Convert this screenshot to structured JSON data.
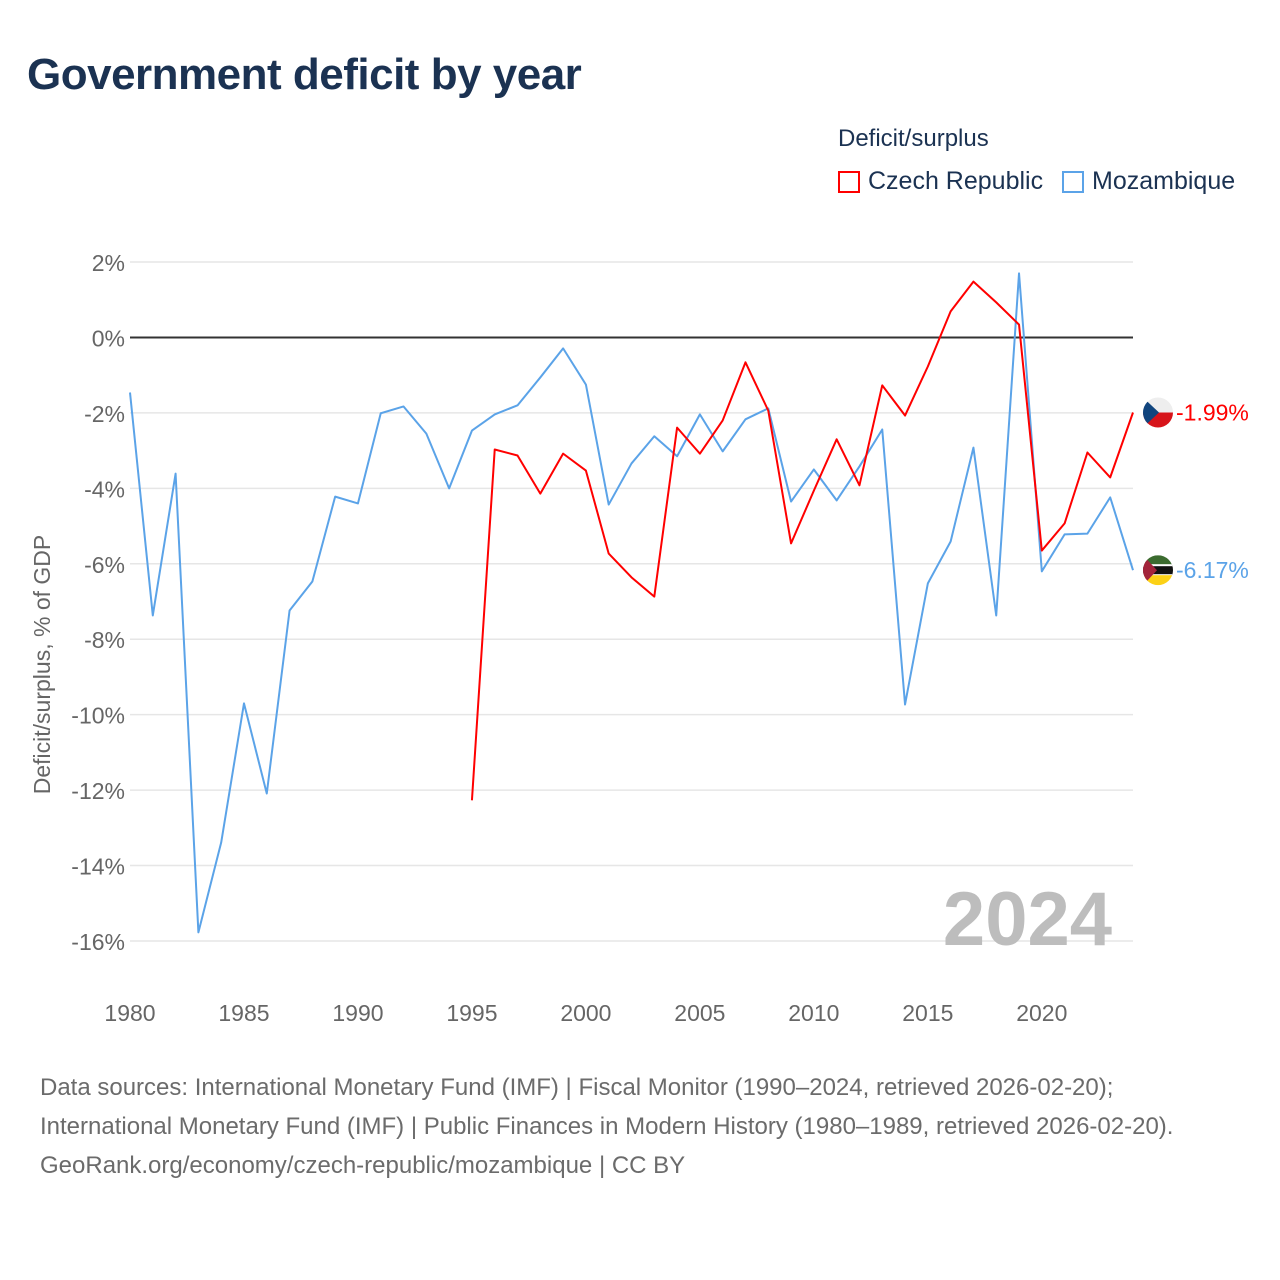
{
  "chart_data": {
    "type": "line",
    "title": "Government deficit by year",
    "xlabel": "",
    "ylabel": "Deficit/surplus, % of GDP",
    "xlim": [
      1980,
      2024
    ],
    "ylim": [
      -16,
      2
    ],
    "grid": true,
    "x_ticks": [
      "1980",
      "1985",
      "1990",
      "1995",
      "2000",
      "2005",
      "2010",
      "2015",
      "2020"
    ],
    "y_ticks": [
      "2%",
      "0%",
      "-2%",
      "-4%",
      "-6%",
      "-8%",
      "-10%",
      "-12%",
      "-14%",
      "-16%"
    ],
    "legend_title": "Deficit/surplus",
    "legend_position": "top-right",
    "year_watermark": "2024",
    "series": [
      {
        "name": "Czech Republic",
        "color": "#ff0000",
        "end_label": "-1.99%",
        "x": [
          1995,
          1996,
          1997,
          1998,
          1999,
          2000,
          2001,
          2002,
          2003,
          2004,
          2005,
          2006,
          2007,
          2008,
          2009,
          2010,
          2011,
          2012,
          2013,
          2014,
          2015,
          2016,
          2017,
          2018,
          2019,
          2020,
          2021,
          2022,
          2023,
          2024
        ],
        "values": [
          -12.27,
          -2.97,
          -3.13,
          -4.14,
          -3.08,
          -3.53,
          -5.73,
          -6.36,
          -6.87,
          -2.39,
          -3.08,
          -2.2,
          -0.66,
          -1.94,
          -5.46,
          -4.06,
          -2.7,
          -3.92,
          -1.27,
          -2.07,
          -0.77,
          0.69,
          1.48,
          0.93,
          0.34,
          -5.65,
          -4.93,
          -3.05,
          -3.71,
          -1.99
        ]
      },
      {
        "name": "Mozambique",
        "color": "#5ba3e8",
        "end_label": "-6.17%",
        "x": [
          1980,
          1981,
          1982,
          1983,
          1984,
          1985,
          1986,
          1987,
          1988,
          1989,
          1990,
          1991,
          1992,
          1993,
          1994,
          1995,
          1996,
          1997,
          1998,
          1999,
          2000,
          2001,
          2002,
          2003,
          2004,
          2005,
          2006,
          2007,
          2008,
          2009,
          2010,
          2011,
          2012,
          2013,
          2014,
          2015,
          2016,
          2017,
          2018,
          2019,
          2020,
          2021,
          2022,
          2023,
          2024
        ],
        "values": [
          -1.46,
          -7.37,
          -3.61,
          -15.77,
          -13.39,
          -9.7,
          -12.09,
          -7.24,
          -6.47,
          -4.22,
          -4.4,
          -2.01,
          -1.83,
          -2.55,
          -4.0,
          -2.47,
          -2.04,
          -1.8,
          -1.06,
          -0.29,
          -1.25,
          -4.43,
          -3.34,
          -2.62,
          -3.15,
          -2.04,
          -3.02,
          -2.17,
          -1.88,
          -4.35,
          -3.5,
          -4.32,
          -3.42,
          -2.44,
          -9.73,
          -6.52,
          -5.41,
          -2.92,
          -7.37,
          1.7,
          -6.2,
          -5.22,
          -5.2,
          -4.24,
          -6.17
        ]
      }
    ]
  },
  "footer": {
    "sources": "Data sources: International Monetary Fund (IMF) | Fiscal Monitor (1990–2024, retrieved 2026-02-20); International Monetary Fund (IMF) | Public Finances in Modern History (1980–1989, retrieved 2026-02-20).",
    "credit": "GeoRank.org/economy/czech-republic/mozambique | CC BY"
  }
}
